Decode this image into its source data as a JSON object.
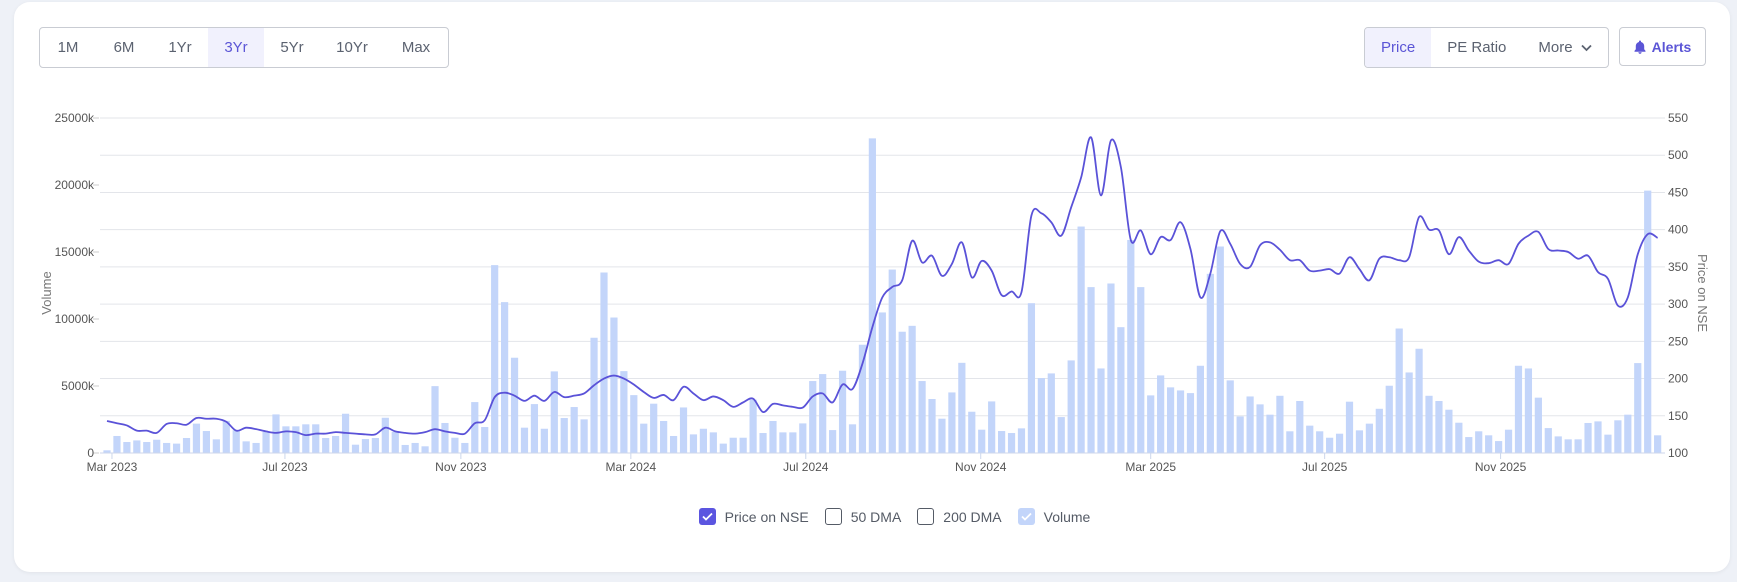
{
  "range_tabs": {
    "items": [
      "1M",
      "6M",
      "1Yr",
      "3Yr",
      "5Yr",
      "10Yr",
      "Max"
    ],
    "active": "3Yr"
  },
  "metric_tabs": {
    "price": "Price",
    "pe_ratio": "PE Ratio",
    "more": "More",
    "active": "Price"
  },
  "alerts_label": "Alerts",
  "legend": {
    "price": "Price on NSE",
    "dma50": "50 DMA",
    "dma200": "200 DMA",
    "volume": "Volume"
  },
  "colors": {
    "accent": "#5b55d6",
    "price_line": "#5a52d8",
    "volume_bar": "#c3d5fa"
  },
  "chart_data": {
    "type": "bar+line",
    "ylabel_left": "Volume",
    "ylabel_right": "Price on NSE",
    "ylim_left": [
      0,
      25000
    ],
    "ylim_right": [
      100,
      550
    ],
    "left_ticks": [
      "0",
      "5000k",
      "10000k",
      "15000k",
      "20000k",
      "25000k"
    ],
    "right_ticks": [
      "100",
      "150",
      "200",
      "250",
      "300",
      "350",
      "400",
      "450",
      "500",
      "550"
    ],
    "x_unit": "week index (0 = first week of Mar 2023)",
    "x_ticks": [
      {
        "label": "Mar 2023",
        "week": 0.5
      },
      {
        "label": "Jul 2023",
        "week": 17.9
      },
      {
        "label": "Nov 2023",
        "week": 35.6
      },
      {
        "label": "Mar 2024",
        "week": 52.7
      },
      {
        "label": "Jul 2024",
        "week": 70.3
      },
      {
        "label": "Nov 2024",
        "week": 87.9
      },
      {
        "label": "Mar 2025",
        "week": 105
      },
      {
        "label": "Jul 2025",
        "week": 122.5
      },
      {
        "label": "Nov 2025",
        "week": 140.2
      }
    ],
    "grid": true,
    "legend_position": "bottom",
    "series": [
      {
        "name": "Volume",
        "unit": "thousands",
        "type": "bar",
        "values": [
          200,
          1270,
          820,
          940,
          820,
          990,
          750,
          700,
          1120,
          2190,
          1640,
          1020,
          2400,
          1700,
          870,
          750,
          1570,
          2880,
          1990,
          1990,
          2140,
          2140,
          1120,
          1270,
          2930,
          620,
          1040,
          1120,
          2630,
          1570,
          600,
          750,
          500,
          4990,
          2240,
          1140,
          750,
          3800,
          1940,
          14020,
          11260,
          7110,
          1890,
          3650,
          1810,
          6090,
          2610,
          3430,
          2510,
          8600,
          13470,
          10110,
          6110,
          4320,
          2190,
          3680,
          2390,
          1270,
          3400,
          1390,
          1810,
          1540,
          700,
          1140,
          1140,
          3980,
          1490,
          2390,
          1540,
          1540,
          2210,
          5370,
          5890,
          1710,
          6140,
          2140,
          8080,
          23480,
          10490,
          13690,
          9050,
          9490,
          5370,
          4030,
          2560,
          4520,
          6730,
          3080,
          1740,
          3850,
          1640,
          1490,
          1840,
          11180,
          5590,
          5940,
          2680,
          6910,
          16900,
          12380,
          6310,
          12650,
          9390,
          15900,
          12380,
          4300,
          5790,
          4900,
          4670,
          4470,
          6510,
          13370,
          15410,
          5420,
          2730,
          4220,
          3630,
          2860,
          4270,
          1620,
          3880,
          2040,
          1620,
          1140,
          1440,
          3830,
          1690,
          2190,
          3300,
          5020,
          9290,
          6010,
          7780,
          4270,
          3880,
          3230,
          2260,
          1190,
          1620,
          1320,
          890,
          1740,
          6510,
          6310,
          4130,
          1860,
          1240,
          1020,
          1020,
          2240,
          2360,
          1370,
          2440,
          2860,
          6710,
          19580,
          1320
        ]
      },
      {
        "name": "Price on NSE",
        "type": "line",
        "values": [
          143,
          140,
          137,
          130,
          130,
          127,
          139,
          140,
          138,
          147,
          146,
          146,
          142,
          130,
          134,
          132,
          129,
          127,
          129,
          128,
          124,
          126,
          126,
          128,
          127,
          126,
          125,
          125,
          134,
          129,
          127,
          126,
          128,
          132,
          129,
          127,
          126,
          140,
          144,
          175,
          181,
          177,
          170,
          177,
          170,
          182,
          175,
          177,
          180,
          191,
          200,
          204,
          200,
          192,
          182,
          174,
          178,
          171,
          189,
          180,
          171,
          176,
          171,
          162,
          168,
          173,
          155,
          166,
          164,
          162,
          161,
          176,
          180,
          168,
          192,
          186,
          220,
          269,
          309,
          323,
          332,
          385,
          356,
          365,
          338,
          354,
          383,
          336,
          358,
          345,
          312,
          317,
          316,
          419,
          422,
          410,
          392,
          430,
          470,
          524,
          446,
          520,
          484,
          386,
          399,
          367,
          390,
          386,
          410,
          374,
          309,
          341,
          398,
          381,
          354,
          350,
          379,
          383,
          373,
          359,
          359,
          345,
          345,
          347,
          341,
          363,
          347,
          332,
          361,
          363,
          359,
          363,
          417,
          400,
          399,
          367,
          390,
          372,
          357,
          355,
          359,
          354,
          381,
          392,
          397,
          374,
          372,
          370,
          361,
          365,
          343,
          334,
          298,
          309,
          367,
          394,
          389
        ]
      }
    ]
  }
}
